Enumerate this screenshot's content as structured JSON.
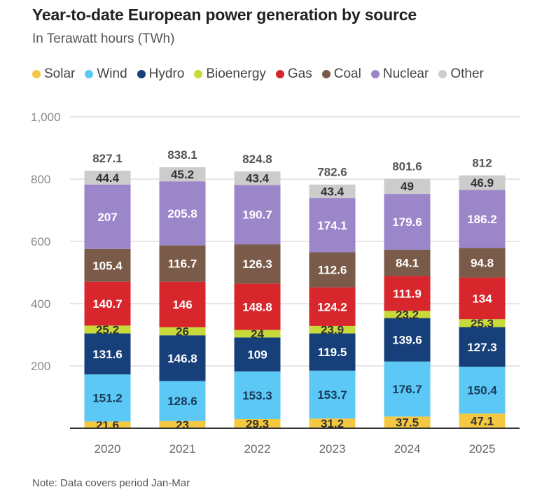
{
  "chart_data": {
    "type": "bar",
    "stacked": true,
    "title": "Year-to-date European power generation by source",
    "subtitle": "In Terawatt hours (TWh)",
    "note": "Note: Data covers period Jan-Mar",
    "categories": [
      "2020",
      "2021",
      "2022",
      "2023",
      "2024",
      "2025"
    ],
    "ylim": [
      0,
      1000
    ],
    "yticks": [
      200,
      400,
      600,
      800,
      1000
    ],
    "ytick_labels": [
      "200",
      "400",
      "600",
      "800",
      "1,000"
    ],
    "totals": [
      "827.1",
      "838.1",
      "824.8",
      "782.6",
      "801.6",
      "812"
    ],
    "series": [
      {
        "name": "Solar",
        "color": "#f5c842",
        "label_color": "#333333",
        "values": [
          21.6,
          23,
          29.3,
          31.2,
          37.5,
          47.1
        ],
        "labels": [
          "21.6",
          "23",
          "29.3",
          "31.2",
          "37.5",
          "47.1"
        ]
      },
      {
        "name": "Wind",
        "color": "#5bc8f5",
        "label_color": "#1a3a5c",
        "values": [
          151.2,
          128.6,
          153.3,
          153.7,
          176.7,
          150.4
        ],
        "labels": [
          "151.2",
          "128.6",
          "153.3",
          "153.7",
          "176.7",
          "150.4"
        ]
      },
      {
        "name": "Hydro",
        "color": "#173f7a",
        "label_color": "#ffffff",
        "values": [
          131.6,
          146.8,
          109,
          119.5,
          139.6,
          127.3
        ],
        "labels": [
          "131.6",
          "146.8",
          "109",
          "119.5",
          "139.6",
          "127.3"
        ]
      },
      {
        "name": "Bioenergy",
        "color": "#c8d93a",
        "label_color": "#333333",
        "values": [
          25.2,
          26,
          24,
          23.9,
          23.2,
          25.3
        ],
        "labels": [
          "25.2",
          "26",
          "24",
          "23.9",
          "23.2",
          "25.3"
        ]
      },
      {
        "name": "Gas",
        "color": "#d7272d",
        "label_color": "#ffffff",
        "values": [
          140.7,
          146,
          148.8,
          124.2,
          111.9,
          134
        ],
        "labels": [
          "140.7",
          "146",
          "148.8",
          "124.2",
          "111.9",
          "134"
        ]
      },
      {
        "name": "Coal",
        "color": "#7a5a48",
        "label_color": "#ffffff",
        "values": [
          105.4,
          116.7,
          126.3,
          112.6,
          84.1,
          94.8
        ],
        "labels": [
          "105.4",
          "116.7",
          "126.3",
          "112.6",
          "84.1",
          "94.8"
        ]
      },
      {
        "name": "Nuclear",
        "color": "#9b86c9",
        "label_color": "#ffffff",
        "values": [
          207,
          205.8,
          190.7,
          174.1,
          179.6,
          186.2
        ],
        "labels": [
          "207",
          "205.8",
          "190.7",
          "174.1",
          "179.6",
          "186.2"
        ]
      },
      {
        "name": "Other",
        "color": "#cccccc",
        "label_color": "#333333",
        "values": [
          44.4,
          45.2,
          43.4,
          43.4,
          49,
          46.9
        ],
        "labels": [
          "44.4",
          "45.2",
          "43.4",
          "43.4",
          "49",
          "46.9"
        ]
      }
    ]
  }
}
